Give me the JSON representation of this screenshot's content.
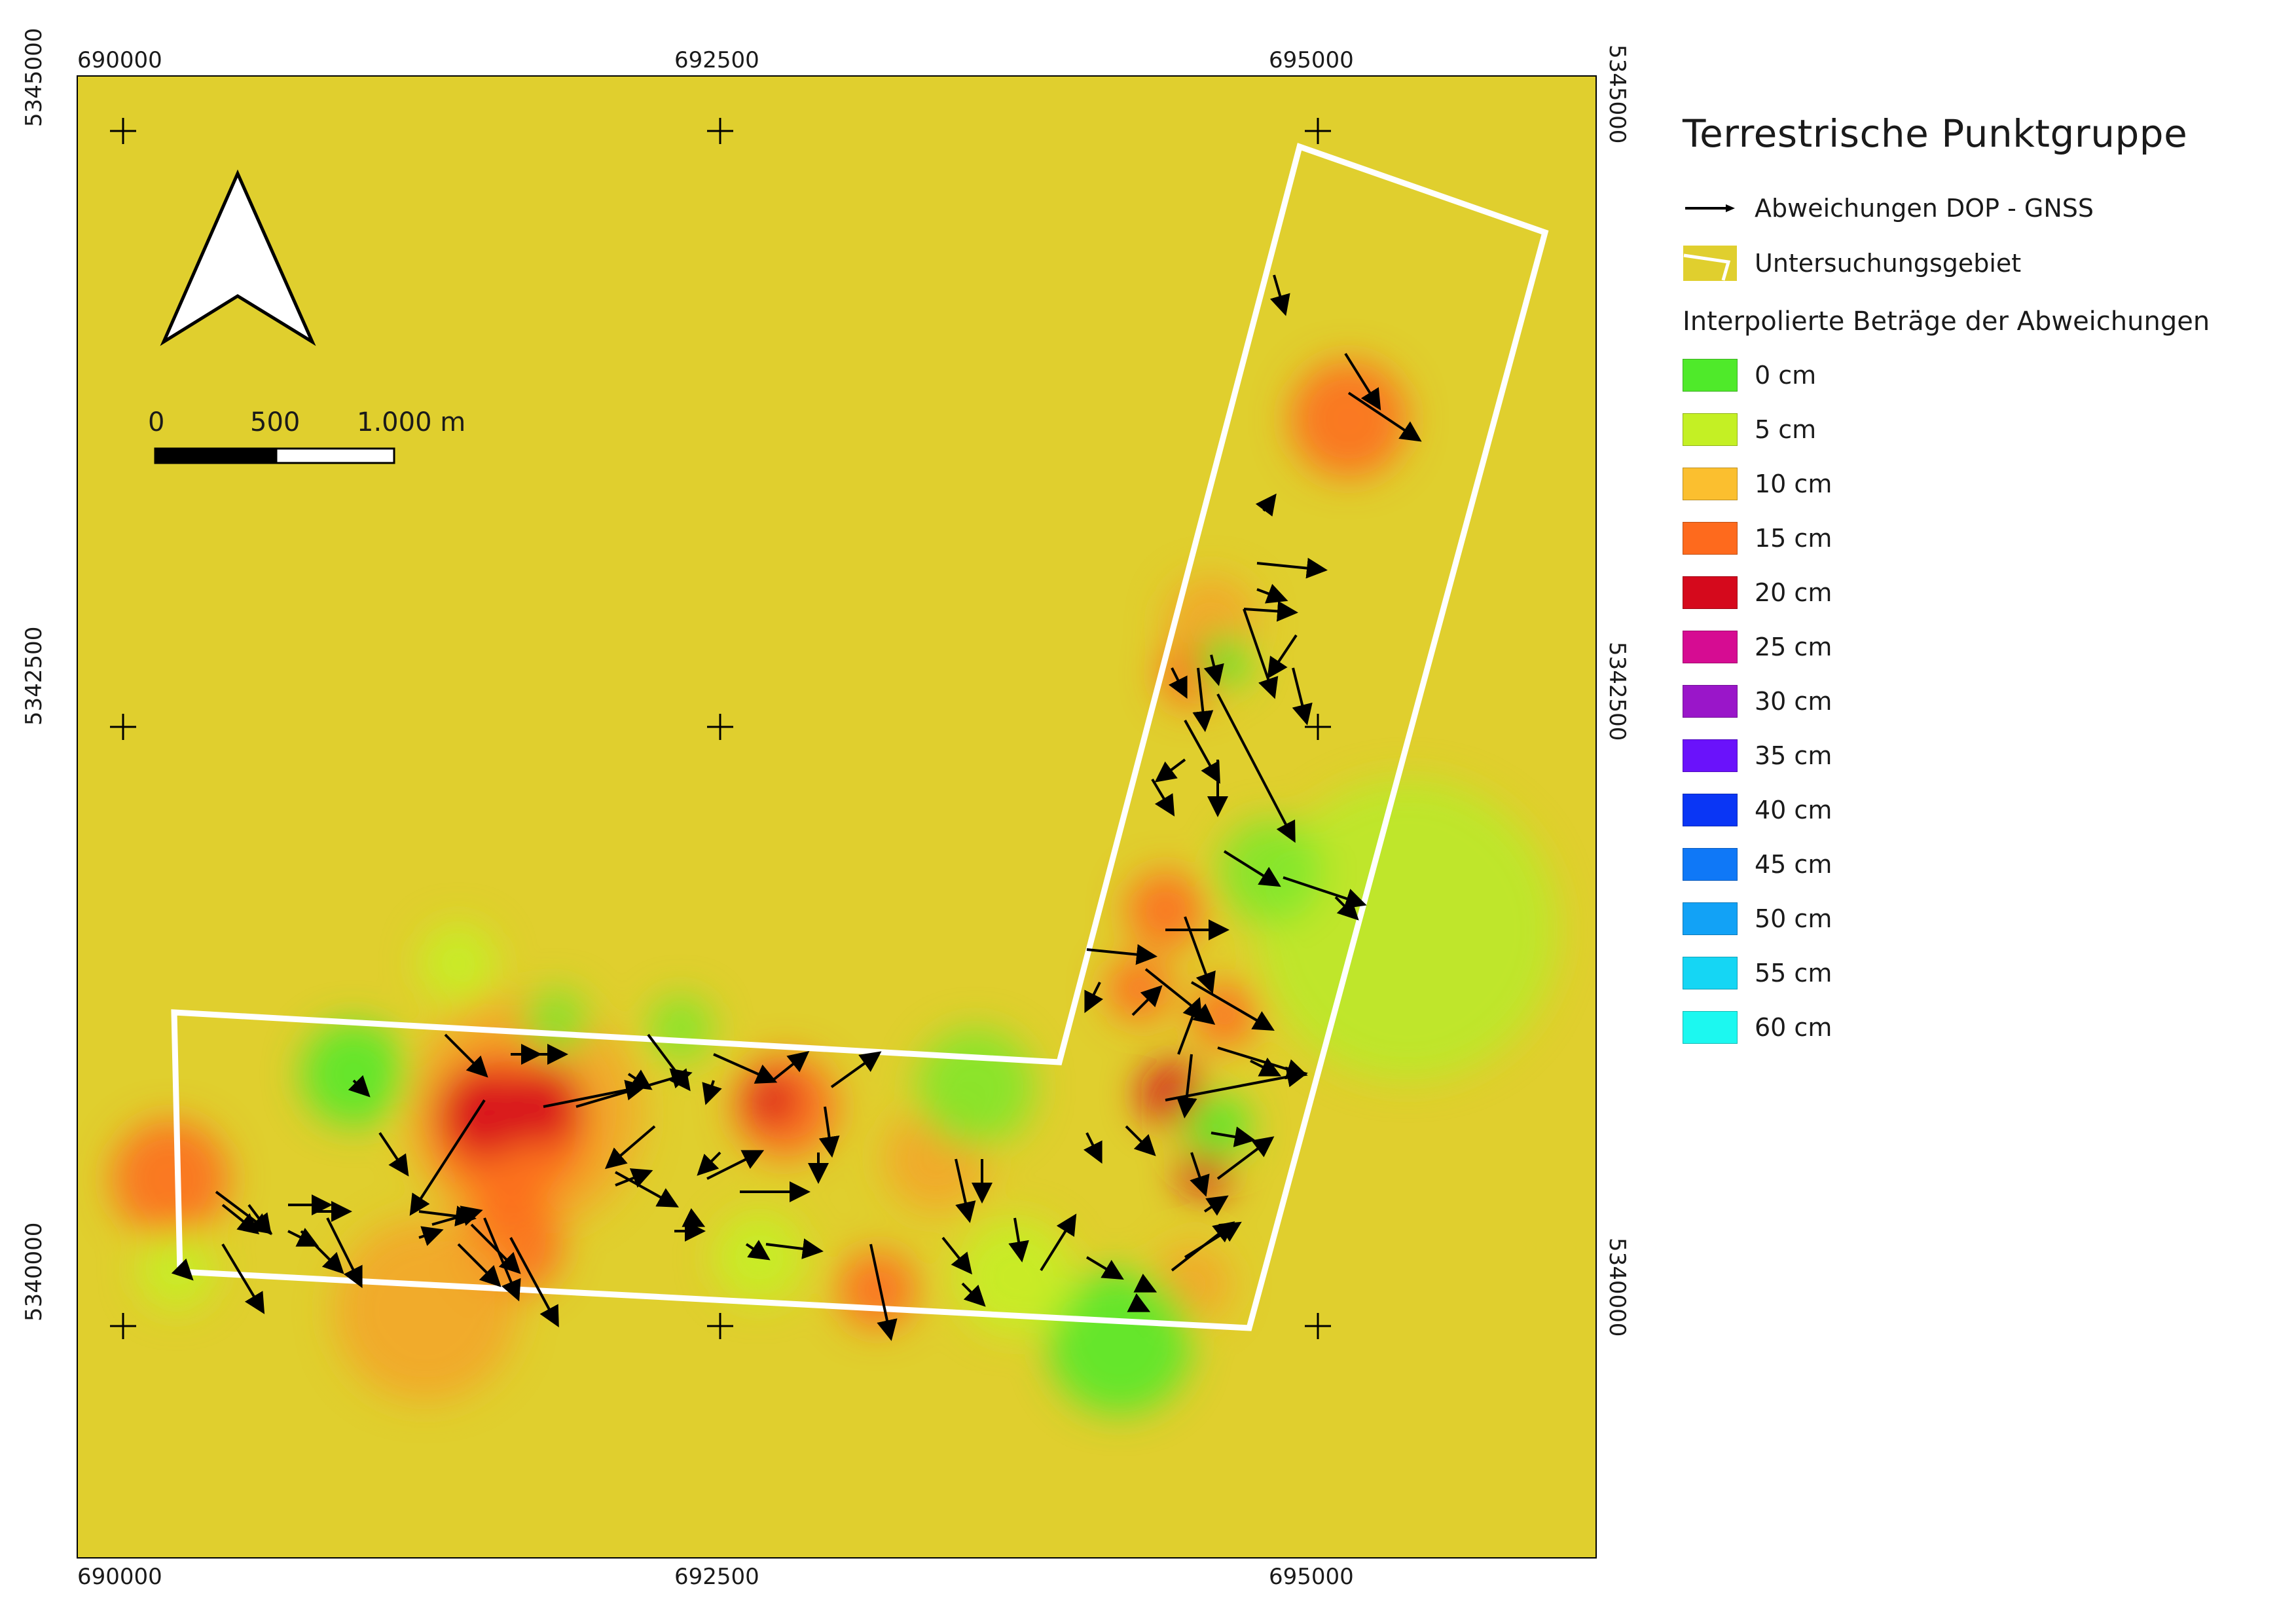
{
  "map": {
    "x_ticks": [
      "690000",
      "692500",
      "695000"
    ],
    "y_ticks": [
      "5345000",
      "5342500",
      "5340000"
    ],
    "background_color": "#e0cf2e"
  },
  "north_arrow": {
    "icon": "north-arrow-icon"
  },
  "scalebar": {
    "labels": [
      "0",
      "500",
      "1.000 m"
    ]
  },
  "legend": {
    "title": "Terrestrische Punktgruppe",
    "items": [
      {
        "label": "Abweichungen DOP - GNSS",
        "icon": "arrow-right-icon"
      },
      {
        "label": "Untersuchungsgebiet",
        "icon": "polygon-outline-icon",
        "color": "#e0cf2e"
      }
    ],
    "ramp_title": "Interpolierte Beträge der Abweichungen",
    "ramp": [
      {
        "label": "0 cm",
        "color": "#4fea2a"
      },
      {
        "label": "5 cm",
        "color": "#c4f024"
      },
      {
        "label": "10 cm",
        "color": "#fbbf2f"
      },
      {
        "label": "15 cm",
        "color": "#fe6a1d"
      },
      {
        "label": "20 cm",
        "color": "#d5091c"
      },
      {
        "label": "25 cm",
        "color": "#d60c92"
      },
      {
        "label": "30 cm",
        "color": "#9a16c9"
      },
      {
        "label": "35 cm",
        "color": "#6a12fb"
      },
      {
        "label": "40 cm",
        "color": "#0a36f5"
      },
      {
        "label": "45 cm",
        "color": "#0f78f7"
      },
      {
        "label": "50 cm",
        "color": "#12a2f6"
      },
      {
        "label": "55 cm",
        "color": "#15d6f4"
      },
      {
        "label": "60 cm",
        "color": "#1cf8f0"
      }
    ]
  }
}
